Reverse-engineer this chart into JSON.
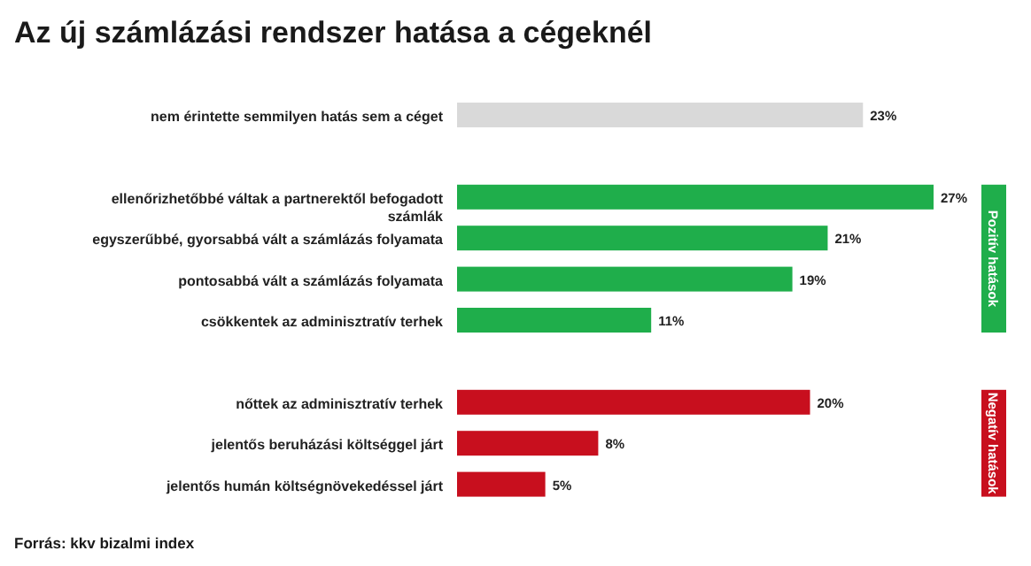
{
  "chart_data": {
    "type": "bar",
    "orientation": "horizontal",
    "title": "Az új számlázási rendszer hatása a cégeknél",
    "categories": [
      "nem érintette semmilyen hatás sem a céget",
      null,
      "ellenőrizhetőbbé váltak a partnerektől befogadott számlák",
      "egyszerűbbé, gyorsabbá vált a számlázás folyamata",
      "pontosabbá vált a számlázás folyamata",
      "csökkentek az adminisztratív terhek",
      null,
      "nőttek az adminisztratív terhek",
      "jelentős beruházási költséggel járt",
      "jelentős humán költségnövekedéssel járt"
    ],
    "values": [
      23,
      null,
      27,
      21,
      19,
      11,
      null,
      20,
      8,
      5
    ],
    "colors": [
      "#d9d9d9",
      null,
      "#1fae4b",
      "#1fae4b",
      "#1fae4b",
      "#1fae4b",
      null,
      "#c80f1e",
      "#c80f1e",
      "#c80f1e"
    ],
    "value_labels": [
      "23%",
      null,
      "27%",
      "21%",
      "19%",
      "11%",
      null,
      "20%",
      "8%",
      "5%"
    ],
    "annotations": [
      "Pozitív hatások",
      "Negatív hatások",
      "Forrás: kkv bizalmi index"
    ]
  }
}
